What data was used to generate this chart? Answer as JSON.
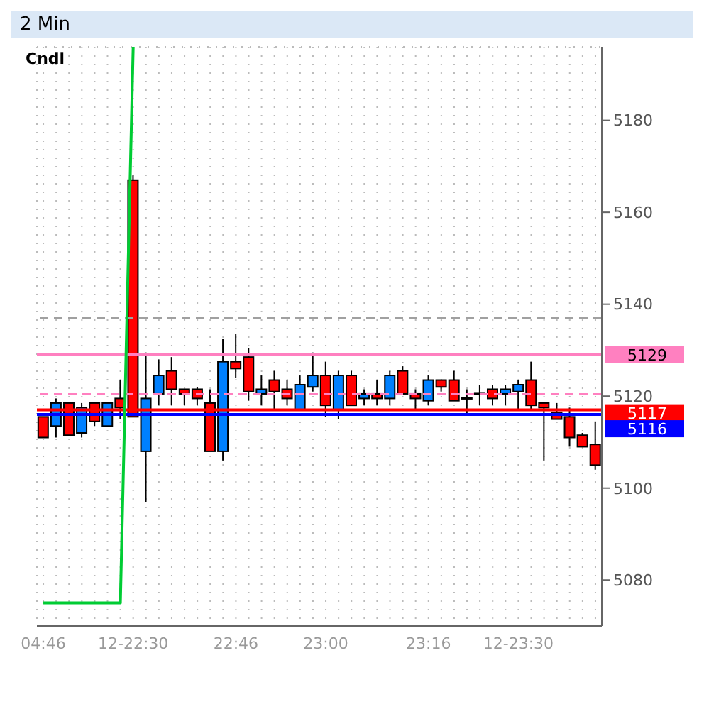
{
  "chart_data": {
    "type": "candlestick",
    "title": "2 Min",
    "annotations": [
      "Cndl"
    ],
    "categories": [
      "04:46",
      null,
      null,
      null,
      null,
      null,
      null,
      "12-22:30",
      null,
      null,
      null,
      null,
      null,
      null,
      null,
      "22:46",
      null,
      null,
      null,
      null,
      null,
      null,
      "23:00",
      null,
      null,
      null,
      null,
      null,
      null,
      null,
      "23:16",
      null,
      null,
      null,
      null,
      null,
      null,
      "12-23:30",
      null,
      null,
      null,
      null,
      null,
      null
    ],
    "ohlc": [
      [
        5115.5,
        5115.5,
        5111,
        5111
      ],
      [
        5113.5,
        5119.5,
        5111,
        5118.5
      ],
      [
        5118.5,
        5118.5,
        5111.5,
        5111.5
      ],
      [
        5112,
        5118.5,
        5111,
        5117.5
      ],
      [
        5118.5,
        5118.5,
        5113.5,
        5114.5
      ],
      [
        5113.5,
        5118.5,
        5113.5,
        5118.5
      ],
      [
        5119.5,
        5123.5,
        5115,
        5117.5
      ],
      [
        5167,
        5168,
        5115.5,
        5115.5
      ],
      [
        5108,
        5129.5,
        5097,
        5119.5
      ],
      [
        5120.5,
        5128,
        5118,
        5124.5
      ],
      [
        5125.5,
        5128.5,
        5118,
        5121.5
      ],
      [
        5121.5,
        5121.5,
        5118,
        5120.5
      ],
      [
        5121.5,
        5122,
        5118,
        5119.5
      ],
      [
        5118.5,
        5121.5,
        5108,
        5108
      ],
      [
        5108,
        5132.5,
        5106,
        5127.5
      ],
      [
        5127.5,
        5133.5,
        5124,
        5126
      ],
      [
        5128.5,
        5130.5,
        5119,
        5121
      ],
      [
        5120.5,
        5124.5,
        5118,
        5121.5
      ],
      [
        5123.5,
        5125.5,
        5117,
        5121
      ],
      [
        5121.5,
        5123.5,
        5118,
        5119.5
      ],
      [
        5117,
        5124.5,
        5117,
        5122.5
      ],
      [
        5122,
        5129.5,
        5121,
        5124.5
      ],
      [
        5124.5,
        5127.5,
        5115.5,
        5118
      ],
      [
        5117,
        5125.5,
        5115,
        5124.5
      ],
      [
        5124.5,
        5125.5,
        5118,
        5118
      ],
      [
        5119.5,
        5121.5,
        5118,
        5120.5
      ],
      [
        5120.5,
        5123.5,
        5118,
        5119.5
      ],
      [
        5119.5,
        5125.5,
        5118,
        5124.5
      ],
      [
        5125.5,
        5126.5,
        5120.5,
        5120.5
      ],
      [
        5120.5,
        5121.5,
        5117,
        5119.5
      ],
      [
        5119,
        5124.5,
        5118,
        5123.5
      ],
      [
        5123.5,
        5123.5,
        5121,
        5122
      ],
      [
        5123.5,
        5125.5,
        5119,
        5119
      ],
      [
        5119.5,
        5121.5,
        5116,
        5119.5
      ],
      [
        5120.5,
        5122.5,
        5118,
        5120.5
      ],
      [
        5121.5,
        5122.5,
        5118,
        5119.5
      ],
      [
        5120.5,
        5122.5,
        5118,
        5121.5
      ],
      [
        5121,
        5123.5,
        5117,
        5122.5
      ],
      [
        5123.5,
        5127.5,
        5117,
        5118
      ],
      [
        5118.5,
        5118.5,
        5106,
        5117.5
      ],
      [
        5116.5,
        5118.5,
        5115,
        5115
      ],
      [
        5115.5,
        5117.5,
        5109,
        5111
      ],
      [
        5111.5,
        5112,
        5109,
        5109
      ],
      [
        5109.5,
        5114.5,
        5104,
        5105
      ]
    ],
    "colors": [
      "#ff0000",
      "#0080ff",
      "#ff0000",
      "#0080ff",
      "#ff0000",
      "#0080ff",
      "#ff0000",
      "#ff0000",
      "#0080ff",
      "#0080ff",
      "#ff0000",
      "#ff0000",
      "#ff0000",
      "#ff0000",
      "#0080ff",
      "#ff0000",
      "#ff0000",
      "#0080ff",
      "#ff0000",
      "#ff0000",
      "#0080ff",
      "#0080ff",
      "#ff0000",
      "#0080ff",
      "#ff0000",
      "#0080ff",
      "#ff0000",
      "#0080ff",
      "#ff0000",
      "#ff0000",
      "#0080ff",
      "#ff0000",
      "#ff0000",
      "#000000",
      "#000000",
      "#ff0000",
      "#0080ff",
      "#0080ff",
      "#ff0000",
      "#ff0000",
      "#ff0000",
      "#ff0000",
      "#ff0000",
      "#ff0000"
    ],
    "series": [
      {
        "type": "line",
        "color": "#00cc33",
        "values": [
          5075,
          5075,
          5075,
          5075,
          5075,
          5075,
          5075,
          5196,
          null,
          null,
          null,
          null,
          null,
          null,
          null,
          null,
          null,
          null,
          null,
          null,
          null,
          null,
          null,
          null,
          null,
          null,
          null,
          null,
          null,
          null,
          null,
          null,
          null,
          null,
          null,
          null,
          null,
          null,
          null,
          null,
          null,
          null,
          null,
          null
        ]
      }
    ],
    "ylim": [
      5070,
      5196
    ],
    "yticks": [
      5080,
      5100,
      5120,
      5140,
      5160,
      5180
    ],
    "grid": true,
    "ref_lines": [
      {
        "axis": "y",
        "value": 5129,
        "label": "5129",
        "color": "#ff80c0"
      },
      {
        "axis": "y",
        "value": 5117,
        "label": "5117",
        "color": "#ff0000"
      },
      {
        "axis": "y",
        "value": 5116,
        "label": "5116",
        "color": "#0000ff"
      },
      {
        "axis": "y",
        "value": 5137,
        "color": "#a0a0a0",
        "line_style": "dashed"
      },
      {
        "axis": "y",
        "value": 5120.5,
        "color": "#ff80c0",
        "line_style": "dashed"
      }
    ]
  }
}
